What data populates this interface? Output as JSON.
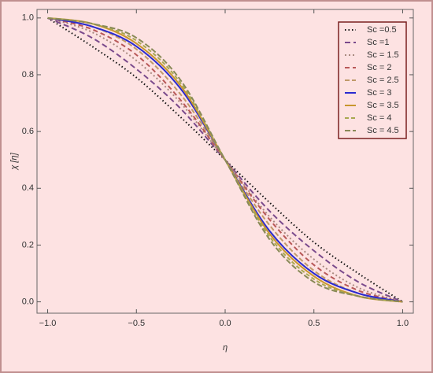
{
  "chart_data": {
    "type": "line",
    "x_label": "η",
    "y_label": "χ [η]",
    "x": [
      -1,
      -0.75,
      -0.5,
      -0.25,
      0,
      0.25,
      0.5,
      0.75,
      1
    ],
    "series": [
      {
        "name": "Sc =0.5",
        "color": "#111111",
        "dash": "1.5,3",
        "values": [
          1,
          0.9,
          0.79,
          0.65,
          0.5,
          0.35,
          0.21,
          0.1,
          0
        ]
      },
      {
        "name": "Sc =1",
        "color": "#7a4a8c",
        "dash": "7,4",
        "values": [
          1,
          0.93,
          0.82,
          0.68,
          0.5,
          0.32,
          0.18,
          0.07,
          0
        ]
      },
      {
        "name": "Sc = 1.5",
        "color": "#a88a80",
        "dash": "2,3",
        "values": [
          1,
          0.95,
          0.85,
          0.7,
          0.5,
          0.3,
          0.15,
          0.05,
          0
        ]
      },
      {
        "name": "Sc = 2",
        "color": "#b85858",
        "dash": "6,4",
        "values": [
          1,
          0.96,
          0.87,
          0.71,
          0.5,
          0.29,
          0.13,
          0.04,
          0
        ]
      },
      {
        "name": "Sc = 2.5",
        "color": "#c09a6a",
        "dash": "6,3",
        "values": [
          1,
          0.97,
          0.89,
          0.73,
          0.5,
          0.27,
          0.11,
          0.03,
          0
        ]
      },
      {
        "name": "Sc = 3",
        "color": "#2a2ad0",
        "dash": "none",
        "values": [
          1,
          0.97,
          0.9,
          0.75,
          0.5,
          0.25,
          0.1,
          0.03,
          0
        ]
      },
      {
        "name": "Sc = 3.5",
        "color": "#c8962e",
        "dash": "none",
        "values": [
          1,
          0.98,
          0.91,
          0.76,
          0.5,
          0.24,
          0.09,
          0.02,
          0
        ]
      },
      {
        "name": "Sc = 4",
        "color": "#a8a850",
        "dash": "5,3",
        "values": [
          1,
          0.98,
          0.92,
          0.77,
          0.5,
          0.23,
          0.08,
          0.02,
          0
        ]
      },
      {
        "name": "Sc = 4.5",
        "color": "#8a8a58",
        "dash": "7,3",
        "values": [
          1,
          0.98,
          0.93,
          0.78,
          0.5,
          0.22,
          0.07,
          0.02,
          0
        ]
      }
    ],
    "xlim": [
      -1.06,
      1.06
    ],
    "ylim": [
      -0.04,
      1.03
    ],
    "xticks": [
      {
        "value": -1,
        "label": "−1.0"
      },
      {
        "value": -0.5,
        "label": "−0.5"
      },
      {
        "value": 0,
        "label": "0.0"
      },
      {
        "value": 0.5,
        "label": "0.5"
      },
      {
        "value": 1,
        "label": "1.0"
      }
    ],
    "yticks": [
      {
        "value": 0,
        "label": "0.0"
      },
      {
        "value": 0.2,
        "label": "0.2"
      },
      {
        "value": 0.4,
        "label": "0.4"
      },
      {
        "value": 0.6,
        "label": "0.6"
      },
      {
        "value": 0.8,
        "label": "0.8"
      },
      {
        "value": 1,
        "label": "1.0"
      }
    ],
    "legend": "upper right"
  }
}
